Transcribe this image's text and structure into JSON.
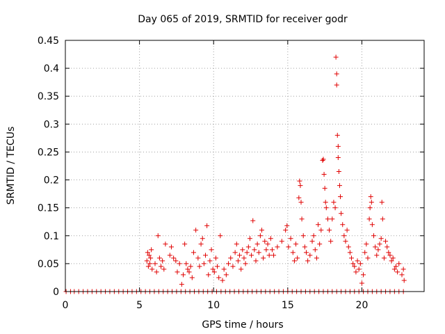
{
  "chart_data": {
    "type": "scatter",
    "title": "Day 065 of 2019, SRMTID for receiver godr",
    "xlabel": "GPS time / hours",
    "ylabel": "SRMTID / TECUs",
    "xlim": [
      0,
      24.2
    ],
    "ylim": [
      0,
      0.45
    ],
    "xticks": [
      0,
      5,
      10,
      15,
      20
    ],
    "xtick_labels": [
      "0",
      "5",
      "10",
      "15",
      "20"
    ],
    "yticks": [
      0,
      0.05,
      0.1,
      0.15,
      0.2,
      0.25,
      0.3,
      0.35,
      0.4,
      0.45
    ],
    "ytick_labels": [
      "0",
      "0.05",
      "0.1",
      "0.15",
      "0.2",
      "0.25",
      "0.3",
      "0.35",
      "0.4",
      "0.45"
    ],
    "grid": true,
    "legend": "none",
    "marker": "+",
    "series": [
      {
        "name": "SRMTID",
        "color": "#e00000",
        "points": [
          [
            0.05,
            0
          ],
          [
            0.35,
            0
          ],
          [
            0.6,
            0
          ],
          [
            0.9,
            0
          ],
          [
            1.2,
            0
          ],
          [
            1.5,
            0
          ],
          [
            1.8,
            0
          ],
          [
            2.1,
            0
          ],
          [
            2.4,
            0
          ],
          [
            2.7,
            0
          ],
          [
            3.0,
            0
          ],
          [
            3.3,
            0
          ],
          [
            3.6,
            0
          ],
          [
            3.9,
            0
          ],
          [
            4.2,
            0
          ],
          [
            4.5,
            0
          ],
          [
            4.8,
            0
          ],
          [
            5.1,
            0
          ],
          [
            5.4,
            0
          ],
          [
            5.7,
            0
          ],
          [
            6.0,
            0
          ],
          [
            6.3,
            0
          ],
          [
            6.6,
            0
          ],
          [
            6.9,
            0
          ],
          [
            7.2,
            0
          ],
          [
            7.5,
            0
          ],
          [
            7.8,
            0
          ],
          [
            8.1,
            0
          ],
          [
            8.4,
            0
          ],
          [
            8.7,
            0
          ],
          [
            9.0,
            0
          ],
          [
            9.3,
            0
          ],
          [
            9.6,
            0
          ],
          [
            9.9,
            0
          ],
          [
            10.2,
            0
          ],
          [
            10.5,
            0
          ],
          [
            10.8,
            0
          ],
          [
            11.1,
            0
          ],
          [
            11.4,
            0
          ],
          [
            11.7,
            0
          ],
          [
            12.0,
            0
          ],
          [
            12.3,
            0
          ],
          [
            12.6,
            0
          ],
          [
            12.9,
            0
          ],
          [
            13.2,
            0
          ],
          [
            13.5,
            0
          ],
          [
            13.8,
            0
          ],
          [
            14.1,
            0
          ],
          [
            14.4,
            0
          ],
          [
            14.7,
            0
          ],
          [
            15.0,
            0
          ],
          [
            15.3,
            0
          ],
          [
            15.6,
            0
          ],
          [
            15.9,
            0
          ],
          [
            16.2,
            0
          ],
          [
            16.5,
            0
          ],
          [
            16.8,
            0
          ],
          [
            17.1,
            0
          ],
          [
            17.4,
            0
          ],
          [
            17.7,
            0
          ],
          [
            18.0,
            0
          ],
          [
            18.3,
            0
          ],
          [
            18.6,
            0
          ],
          [
            18.9,
            0
          ],
          [
            19.2,
            0
          ],
          [
            19.5,
            0
          ],
          [
            19.8,
            0
          ],
          [
            20.1,
            0
          ],
          [
            20.4,
            0
          ],
          [
            20.7,
            0
          ],
          [
            21.0,
            0
          ],
          [
            21.3,
            0
          ],
          [
            21.6,
            0
          ],
          [
            21.9,
            0
          ],
          [
            22.2,
            0
          ],
          [
            22.5,
            0
          ],
          [
            22.8,
            0
          ],
          [
            5.5,
            0.055
          ],
          [
            5.55,
            0.07
          ],
          [
            5.6,
            0.045
          ],
          [
            5.65,
            0.065
          ],
          [
            5.7,
            0.05
          ],
          [
            5.75,
            0.06
          ],
          [
            5.8,
            0.075
          ],
          [
            5.85,
            0.04
          ],
          [
            6.05,
            0.05
          ],
          [
            6.15,
            0.035
          ],
          [
            6.25,
            0.1
          ],
          [
            6.35,
            0.06
          ],
          [
            6.45,
            0.045
          ],
          [
            6.55,
            0.055
          ],
          [
            6.65,
            0.04
          ],
          [
            6.75,
            0.085
          ],
          [
            7.05,
            0.065
          ],
          [
            7.15,
            0.08
          ],
          [
            7.3,
            0.06
          ],
          [
            7.45,
            0.055
          ],
          [
            7.55,
            0.035
          ],
          [
            7.7,
            0.05
          ],
          [
            7.85,
            0.013
          ],
          [
            7.95,
            0.03
          ],
          [
            8.05,
            0.085
          ],
          [
            8.15,
            0.05
          ],
          [
            8.25,
            0.04
          ],
          [
            8.35,
            0.035
          ],
          [
            8.45,
            0.045
          ],
          [
            8.55,
            0.025
          ],
          [
            8.65,
            0.07
          ],
          [
            8.8,
            0.11
          ],
          [
            8.95,
            0.06
          ],
          [
            9.05,
            0.045
          ],
          [
            9.15,
            0.085
          ],
          [
            9.25,
            0.095
          ],
          [
            9.35,
            0.05
          ],
          [
            9.45,
            0.065
          ],
          [
            9.55,
            0.118
          ],
          [
            9.65,
            0.03
          ],
          [
            9.75,
            0.055
          ],
          [
            9.85,
            0.075
          ],
          [
            9.95,
            0.04
          ],
          [
            10.05,
            0.035
          ],
          [
            10.15,
            0.06
          ],
          [
            10.25,
            0.045
          ],
          [
            10.35,
            0.025
          ],
          [
            10.45,
            0.1
          ],
          [
            10.6,
            0.02
          ],
          [
            10.7,
            0.04
          ],
          [
            10.85,
            0.03
          ],
          [
            11.0,
            0.05
          ],
          [
            11.15,
            0.06
          ],
          [
            11.3,
            0.045
          ],
          [
            11.45,
            0.07
          ],
          [
            11.55,
            0.085
          ],
          [
            11.65,
            0.055
          ],
          [
            11.75,
            0.065
          ],
          [
            11.85,
            0.04
          ],
          [
            11.95,
            0.075
          ],
          [
            12.05,
            0.06
          ],
          [
            12.15,
            0.05
          ],
          [
            12.25,
            0.07
          ],
          [
            12.35,
            0.08
          ],
          [
            12.45,
            0.095
          ],
          [
            12.55,
            0.065
          ],
          [
            12.65,
            0.127
          ],
          [
            12.75,
            0.075
          ],
          [
            12.85,
            0.055
          ],
          [
            12.95,
            0.085
          ],
          [
            13.05,
            0.07
          ],
          [
            13.15,
            0.1
          ],
          [
            13.25,
            0.11
          ],
          [
            13.35,
            0.06
          ],
          [
            13.45,
            0.09
          ],
          [
            13.55,
            0.075
          ],
          [
            13.65,
            0.085
          ],
          [
            13.75,
            0.065
          ],
          [
            13.85,
            0.095
          ],
          [
            13.95,
            0.075
          ],
          [
            14.05,
            0.065
          ],
          [
            14.3,
            0.08
          ],
          [
            14.6,
            0.09
          ],
          [
            14.85,
            0.11
          ],
          [
            14.95,
            0.118
          ],
          [
            15.05,
            0.08
          ],
          [
            15.2,
            0.095
          ],
          [
            15.35,
            0.07
          ],
          [
            15.45,
            0.055
          ],
          [
            15.55,
            0.085
          ],
          [
            15.65,
            0.06
          ],
          [
            15.75,
            0.168
          ],
          [
            15.8,
            0.198
          ],
          [
            15.85,
            0.19
          ],
          [
            15.9,
            0.16
          ],
          [
            15.95,
            0.13
          ],
          [
            16.05,
            0.1
          ],
          [
            16.15,
            0.08
          ],
          [
            16.25,
            0.07
          ],
          [
            16.35,
            0.055
          ],
          [
            16.5,
            0.065
          ],
          [
            16.65,
            0.09
          ],
          [
            16.75,
            0.1
          ],
          [
            16.85,
            0.075
          ],
          [
            16.95,
            0.06
          ],
          [
            17.05,
            0.12
          ],
          [
            17.15,
            0.085
          ],
          [
            17.25,
            0.11
          ],
          [
            17.35,
            0.235
          ],
          [
            17.4,
            0.237
          ],
          [
            17.45,
            0.21
          ],
          [
            17.5,
            0.185
          ],
          [
            17.55,
            0.16
          ],
          [
            17.6,
            0.15
          ],
          [
            17.7,
            0.13
          ],
          [
            17.8,
            0.11
          ],
          [
            17.9,
            0.09
          ],
          [
            18.0,
            0.13
          ],
          [
            18.1,
            0.16
          ],
          [
            18.2,
            0.15
          ],
          [
            18.25,
            0.42
          ],
          [
            18.3,
            0.39
          ],
          [
            18.3,
            0.37
          ],
          [
            18.35,
            0.28
          ],
          [
            18.4,
            0.26
          ],
          [
            18.4,
            0.24
          ],
          [
            18.45,
            0.215
          ],
          [
            18.5,
            0.19
          ],
          [
            18.55,
            0.17
          ],
          [
            18.6,
            0.14
          ],
          [
            18.7,
            0.12
          ],
          [
            18.8,
            0.1
          ],
          [
            18.9,
            0.09
          ],
          [
            19.0,
            0.11
          ],
          [
            19.1,
            0.08
          ],
          [
            19.2,
            0.07
          ],
          [
            19.3,
            0.06
          ],
          [
            19.4,
            0.05
          ],
          [
            19.5,
            0.045
          ],
          [
            19.6,
            0.035
          ],
          [
            19.7,
            0.055
          ],
          [
            19.8,
            0.04
          ],
          [
            19.9,
            0.05
          ],
          [
            20.0,
            0.015
          ],
          [
            20.1,
            0.03
          ],
          [
            20.2,
            0.07
          ],
          [
            20.3,
            0.085
          ],
          [
            20.4,
            0.06
          ],
          [
            20.5,
            0.13
          ],
          [
            20.55,
            0.15
          ],
          [
            20.6,
            0.17
          ],
          [
            20.65,
            0.16
          ],
          [
            20.7,
            0.12
          ],
          [
            20.8,
            0.1
          ],
          [
            20.9,
            0.08
          ],
          [
            21.0,
            0.065
          ],
          [
            21.1,
            0.075
          ],
          [
            21.2,
            0.085
          ],
          [
            21.3,
            0.095
          ],
          [
            21.35,
            0.16
          ],
          [
            21.4,
            0.13
          ],
          [
            21.5,
            0.06
          ],
          [
            21.6,
            0.09
          ],
          [
            21.7,
            0.08
          ],
          [
            21.8,
            0.07
          ],
          [
            21.9,
            0.065
          ],
          [
            22.0,
            0.055
          ],
          [
            22.1,
            0.06
          ],
          [
            22.2,
            0.04
          ],
          [
            22.3,
            0.045
          ],
          [
            22.4,
            0.035
          ],
          [
            22.5,
            0.05
          ],
          [
            22.7,
            0.03
          ],
          [
            22.8,
            0.04
          ],
          [
            22.85,
            0.02
          ]
        ]
      }
    ]
  }
}
